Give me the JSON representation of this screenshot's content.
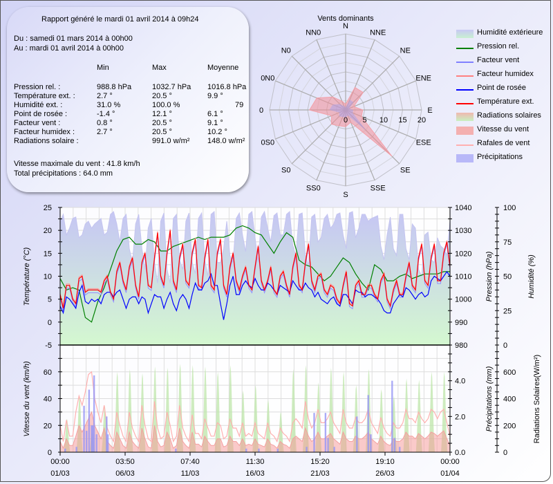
{
  "report": {
    "generated": "Rapport généré le mardi 01 avril 2014 à 09h24",
    "from": "Du : samedi 01 mars 2014 à 00h00",
    "to": "Au : mardi 01 avril 2014 à 00h00",
    "columns": [
      "Min",
      "Max",
      "Moyenne"
    ],
    "rows": [
      {
        "label": "Pression rel. :",
        "min": "988.8 hPa",
        "max": "1032.7 hPa",
        "avg": "1016.8 hPa"
      },
      {
        "label": "Température ext. :",
        "min": "2.7 °",
        "max": "20.5 °",
        "avg": "9.9 °"
      },
      {
        "label": "Humidité ext. :",
        "min": "31.0 %",
        "max": "100.0 %",
        "avg": "79"
      },
      {
        "label": "Point de rosée :",
        "min": "-1.4 °",
        "max": "12.1 °",
        "avg": "6.1 °"
      },
      {
        "label": "Facteur vent :",
        "min": "0.8 °",
        "max": "20.5 °",
        "avg": "9.1 °"
      },
      {
        "label": "Facteur humidex :",
        "min": "2.7 °",
        "max": "20.5 °",
        "avg": "10.2 °"
      },
      {
        "label": "Radiations solaire :",
        "min": "",
        "max": "991.0 w/m²",
        "avg": "148.0 w/m²"
      }
    ],
    "max_wind": "Vitesse maximale du vent : 41.8 km/h",
    "total_rain": "Total précipitations : 64.0 mm"
  },
  "legend": [
    {
      "label": "Humidité extérieure",
      "kind": "area",
      "color": "#c8c8f4",
      "color2": "#c8f0d0"
    },
    {
      "label": "Pression rel.",
      "kind": "line",
      "color": "#008000"
    },
    {
      "label": "Facteur vent",
      "kind": "line",
      "color": "#8080ff"
    },
    {
      "label": "Facteur humidex",
      "kind": "line",
      "color": "#ff8080"
    },
    {
      "label": "Point de rosée",
      "kind": "line",
      "color": "#0000ff"
    },
    {
      "label": "Température ext.",
      "kind": "line",
      "color": "#ff0000"
    },
    {
      "label": "Radiations solaires",
      "kind": "area",
      "color": "#f0b8b0",
      "color2": "#c8f0c0"
    },
    {
      "label": "Vitesse du vent",
      "kind": "area",
      "color": "#f4b0b0",
      "color2": "#f4b0b0"
    },
    {
      "label": "Rafales de vent",
      "kind": "line",
      "color": "#ffb0b0"
    },
    {
      "label": "Précipitations",
      "kind": "area",
      "color": "#b8b8f8",
      "color2": "#b8b8f8"
    }
  ],
  "chart_data": [
    {
      "type": "radar",
      "title": "Vents dominants",
      "directions": [
        "N",
        "NNE",
        "NE",
        "ENE",
        "E",
        "ESE",
        "SE",
        "SSE",
        "S",
        "SS0",
        "S0",
        "0S0",
        "0",
        "0N0",
        "N0",
        "NN0"
      ],
      "values": [
        1.5,
        6.4,
        6.5,
        2.3,
        4.5,
        4.5,
        17.2,
        3.5,
        4.4,
        4.5,
        5.3,
        4.0,
        9.5,
        8.2,
        4.8,
        2.5
      ],
      "radial_ticks": [
        "0",
        "5",
        "10",
        "15",
        "20"
      ],
      "rmax": 20,
      "color": "#f4a0a8"
    },
    {
      "type": "line",
      "x_ticks": [
        {
          "time": "00:00",
          "date": "01/03"
        },
        {
          "time": "03:50",
          "date": "06/03"
        },
        {
          "time": "07:40",
          "date": "11/03"
        },
        {
          "time": "11:30",
          "date": "16/03"
        },
        {
          "time": "15:20",
          "date": "21/03"
        },
        {
          "time": "19:10",
          "date": "26/03"
        },
        {
          "time": "00:00",
          "date": "01/04"
        }
      ],
      "x_range_days": [
        0,
        31
      ],
      "ylabel_left": "Température (°C)",
      "ylim_left": [
        -5,
        25
      ],
      "yticks_left": [
        "25",
        "20",
        "15",
        "10",
        "5",
        "0",
        "-5"
      ],
      "ylabel_right1": "Pression (hPa)",
      "ylim_right1": [
        980,
        1040
      ],
      "yticks_right1": [
        "1040",
        "1030",
        "1020",
        "1010",
        "1000",
        "990",
        "980"
      ],
      "ylabel_right2": "Humidité (%)",
      "ylim_right2": [
        0,
        100
      ],
      "yticks_right2": [
        "100",
        "75",
        "50",
        "25",
        "0"
      ],
      "grid": true,
      "temperature": [
        6,
        3,
        8,
        8,
        5,
        4,
        9.5,
        10,
        6.5,
        7,
        7,
        7,
        7,
        6.5,
        9,
        10,
        6.5,
        5,
        11,
        13,
        9,
        7,
        12,
        14,
        8,
        5.5,
        13,
        15,
        8,
        7.5,
        14,
        19.5,
        10,
        8,
        15,
        20,
        9,
        7,
        14,
        17,
        9,
        8,
        15,
        18,
        8,
        7.5,
        14,
        18,
        8,
        7,
        15,
        18,
        8,
        6,
        12,
        15,
        9,
        7,
        10,
        12,
        8,
        7,
        12,
        16.5,
        9,
        7,
        9,
        12,
        7,
        6,
        10,
        11,
        8,
        6,
        12,
        15,
        8,
        7,
        13,
        17,
        9,
        7,
        10,
        10.5,
        7,
        6,
        8,
        7.5,
        5,
        4,
        8,
        11,
        4,
        3.5,
        8,
        9,
        6,
        6,
        8,
        8,
        6,
        5,
        9,
        10.5,
        5,
        3.5,
        7,
        9,
        6,
        6,
        10,
        13,
        8,
        7,
        14,
        17,
        9,
        8,
        14,
        17,
        9,
        9,
        15,
        17.5,
        12
      ],
      "dew_point": [
        3.5,
        2,
        5.5,
        5,
        4,
        3,
        6.5,
        8,
        4.5,
        4,
        5,
        4.5,
        5,
        4,
        6,
        6.5,
        6.5,
        5.5,
        6.5,
        7,
        5,
        3,
        5,
        5.5,
        5.5,
        4,
        5.5,
        5,
        2,
        4,
        6,
        5.5,
        5.5,
        3,
        5,
        6.5,
        4,
        2.5,
        5,
        6,
        5,
        3,
        6,
        8.5,
        7,
        7,
        8.5,
        9,
        10.5,
        8,
        8,
        4,
        0.5,
        4,
        8,
        10,
        6,
        6,
        8,
        9,
        8,
        7.5,
        9.5,
        8,
        7,
        7,
        8.5,
        8,
        7,
        6,
        8,
        7.5,
        7,
        6.5,
        9,
        8,
        7,
        7,
        8.5,
        7.5,
        7,
        5.5,
        6.5,
        5,
        4.5,
        4,
        5,
        5.5,
        4,
        3.5,
        6,
        6,
        5,
        4,
        7,
        6.5,
        6.5,
        5.5,
        6,
        6,
        5.5,
        5,
        4,
        2.5,
        2,
        2,
        4,
        5,
        6,
        5.5,
        7.5,
        7,
        6,
        5,
        6,
        6.5,
        5.5,
        6,
        9,
        10,
        9.5,
        9,
        10,
        11,
        10
      ],
      "humidity": [
        90,
        95,
        80,
        85,
        92,
        93,
        78,
        80,
        88,
        90,
        85,
        88,
        90,
        92,
        80,
        82,
        95,
        97,
        88,
        75,
        92,
        95,
        70,
        60,
        88,
        95,
        70,
        55,
        85,
        92,
        60,
        45,
        90,
        96,
        55,
        45,
        92,
        95,
        62,
        55,
        90,
        96,
        60,
        52,
        92,
        96,
        62,
        50,
        95,
        97,
        60,
        60,
        70,
        90,
        65,
        60,
        92,
        96,
        80,
        68,
        95,
        97,
        78,
        60,
        93,
        97,
        85,
        75,
        94,
        96,
        80,
        80,
        95,
        97,
        72,
        65,
        95,
        96,
        65,
        58,
        93,
        95,
        75,
        78,
        92,
        95,
        85,
        88,
        95,
        96,
        80,
        70,
        96,
        97,
        78,
        85,
        95,
        95,
        90,
        92,
        93,
        94,
        72,
        62,
        80,
        93,
        70,
        65,
        95,
        95,
        70,
        62,
        88,
        85,
        55,
        50,
        80,
        82,
        62,
        60,
        78,
        72,
        70,
        65,
        90
      ],
      "pressure_12h": [
        1009,
        1004,
        1005,
        1004,
        992,
        990,
        999,
        1005,
        1013,
        1021,
        1026,
        1027,
        1024,
        1024,
        1026,
        1025,
        1021,
        1021,
        1023,
        1024,
        1025,
        1026,
        1027,
        1026,
        1027,
        1027,
        1027,
        1028,
        1031,
        1032,
        1031,
        1029,
        1028,
        1024,
        1020,
        1025,
        1029,
        1027,
        1017,
        1015,
        1014,
        1011,
        1008,
        1010,
        1014,
        1018,
        1016,
        1011,
        1007,
        1004,
        1015,
        1013,
        1008,
        1008,
        1010,
        1011,
        1009,
        1010,
        1011,
        1011,
        1011,
        1012,
        1012
      ]
    },
    {
      "type": "area",
      "ylabel_left": "Vitesse du vent (km/h)",
      "ylim_left": [
        0,
        80
      ],
      "yticks_left": [
        "60",
        "40",
        "20",
        "0"
      ],
      "ylabel_right1": "Précipitations (mm)",
      "ylim_right1": [
        0,
        6
      ],
      "yticks_right1": [
        "4.0",
        "2.0",
        "0.0"
      ],
      "ylabel_right2": "Radiations Solaires(W/m²)",
      "ylim_right2": [
        0,
        800
      ],
      "yticks_right2": [
        "600",
        "400",
        "200",
        "0"
      ],
      "wind_speed_6h": [
        8,
        3,
        10,
        5,
        5,
        12,
        20,
        15,
        20,
        25,
        30,
        20,
        15,
        10,
        18,
        8,
        5,
        3,
        15,
        10,
        5,
        3,
        15,
        8,
        5,
        3,
        18,
        10,
        4,
        3,
        20,
        8,
        4,
        5,
        15,
        10,
        3,
        5,
        18,
        8,
        5,
        3,
        15,
        6,
        6,
        4,
        12,
        8,
        5,
        5,
        10,
        10,
        4,
        5,
        12,
        8,
        8,
        5,
        10,
        5,
        6,
        5,
        10,
        6,
        5,
        4,
        10,
        6,
        5,
        3,
        8,
        6,
        5,
        3,
        10,
        12,
        10,
        8,
        18,
        12,
        8,
        10,
        15,
        10,
        10,
        12,
        14,
        10,
        8,
        6,
        15,
        10,
        8,
        8,
        12,
        10,
        10,
        12,
        15,
        10,
        8,
        6,
        12,
        8,
        6,
        5,
        10,
        8,
        8,
        10,
        15,
        12,
        12,
        10,
        14,
        12,
        10,
        12,
        15,
        14,
        12,
        14,
        16,
        10,
        5
      ],
      "wind_gust_6h": [
        20,
        8,
        24,
        12,
        12,
        30,
        42,
        35,
        45,
        58,
        60,
        40,
        30,
        22,
        35,
        18,
        12,
        8,
        30,
        20,
        12,
        8,
        30,
        18,
        12,
        8,
        35,
        20,
        10,
        8,
        38,
        18,
        10,
        12,
        30,
        20,
        8,
        12,
        35,
        18,
        12,
        8,
        28,
        14,
        14,
        10,
        25,
        18,
        12,
        12,
        22,
        20,
        10,
        12,
        25,
        18,
        18,
        12,
        22,
        12,
        14,
        12,
        22,
        14,
        12,
        10,
        22,
        14,
        12,
        8,
        18,
        14,
        12,
        8,
        22,
        25,
        22,
        18,
        38,
        25,
        18,
        22,
        32,
        22,
        22,
        25,
        30,
        22,
        18,
        14,
        32,
        22,
        18,
        18,
        26,
        22,
        22,
        25,
        32,
        22,
        18,
        14,
        26,
        18,
        14,
        12,
        22,
        18,
        18,
        22,
        32,
        25,
        25,
        22,
        30,
        25,
        22,
        25,
        32,
        30,
        25,
        30,
        32,
        22,
        12
      ],
      "solar_daily_peak": [
        250,
        420,
        150,
        350,
        600,
        620,
        590,
        640,
        630,
        660,
        650,
        640,
        600,
        650,
        460,
        500,
        390,
        300,
        620,
        650,
        520,
        630,
        600,
        500,
        620,
        470,
        420,
        550,
        540,
        600,
        600
      ],
      "precipitation_events": [
        [
          0.4,
          0.2
        ],
        [
          1.3,
          0.3
        ],
        [
          1.9,
          2.6
        ],
        [
          2.1,
          1.2
        ],
        [
          2.3,
          3.5
        ],
        [
          2.5,
          1.5
        ],
        [
          2.6,
          1.5
        ],
        [
          2.7,
          4.3
        ],
        [
          2.9,
          1.0
        ],
        [
          3.7,
          2.0
        ],
        [
          3.8,
          1.0
        ],
        [
          9.2,
          0.2
        ],
        [
          14.8,
          0.2
        ],
        [
          15.8,
          0.2
        ],
        [
          17.3,
          0.2
        ],
        [
          19.6,
          0.3
        ],
        [
          20.2,
          2.2
        ],
        [
          21.1,
          2.2
        ],
        [
          21.3,
          0.8
        ],
        [
          21.8,
          0.3
        ],
        [
          23.6,
          2.0
        ],
        [
          24.5,
          3.2
        ],
        [
          24.7,
          1.0
        ],
        [
          26.4,
          4.0
        ],
        [
          26.6,
          0.8
        ],
        [
          27.0,
          0.3
        ]
      ]
    }
  ]
}
